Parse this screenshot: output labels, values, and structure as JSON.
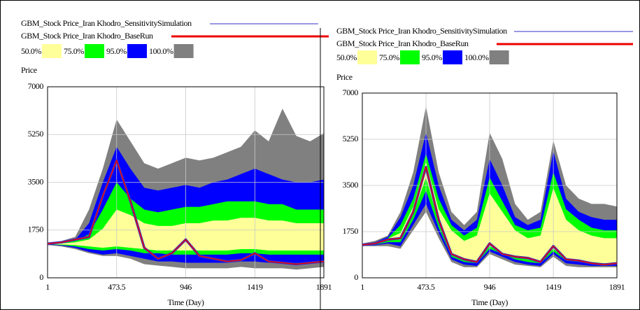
{
  "chart_data": [
    {
      "type": "sensitivity",
      "y_label": "Price",
      "x_label": "Time (Day)",
      "xlim": [
        1,
        1891
      ],
      "xticks": [
        1,
        473.5,
        946,
        1419,
        1891
      ],
      "ylim": [
        0,
        7000
      ],
      "yticks": [
        0,
        1750,
        3500,
        5250,
        7000
      ],
      "grid": true,
      "x": [
        1,
        95.5,
        190,
        284.5,
        379,
        473.5,
        568,
        662.5,
        757,
        851.5,
        946,
        1040.5,
        1135,
        1229.5,
        1324,
        1419,
        1513.5,
        1608,
        1702.5,
        1797,
        1891
      ],
      "series": [
        {
          "name": "GBM_Stock Price_Iran Khodro_SensitivitySimulation",
          "color": "#3333cc",
          "values": [
            1250,
            1300,
            1400,
            1500,
            3000,
            4300,
            2800,
            1100,
            700,
            900,
            1400,
            800,
            700,
            600,
            650,
            900,
            600,
            550,
            500,
            550,
            600
          ]
        },
        {
          "name": "GBM_Stock Price_Iran Khodro_BaseRun",
          "color": "#ee0000",
          "values": [
            1250,
            1300,
            1400,
            1500,
            3000,
            4300,
            2800,
            1100,
            700,
            900,
            1400,
            800,
            700,
            600,
            650,
            900,
            600,
            550,
            500,
            550,
            600
          ]
        }
      ],
      "bands": [
        {
          "name": "50.0%",
          "color": "#ffff99",
          "upper": [
            1235,
            1260,
            1300,
            1400,
            1800,
            2500,
            2300,
            2000,
            1900,
            1900,
            2000,
            2000,
            2100,
            2100,
            2200,
            2200,
            2100,
            2100,
            2000,
            2000,
            2000
          ],
          "lower": [
            1232,
            1220,
            1200,
            1150,
            1100,
            1150,
            1100,
            1050,
            1000,
            1000,
            1000,
            1000,
            1000,
            1000,
            1050,
            1050,
            1000,
            1000,
            1000,
            1000,
            1000
          ]
        },
        {
          "name": "75.0%",
          "color": "#00ff00",
          "upper": [
            1240,
            1280,
            1350,
            1600,
            2500,
            3500,
            2900,
            2500,
            2400,
            2500,
            2600,
            2600,
            2700,
            2800,
            2800,
            2800,
            2700,
            2700,
            2500,
            2500,
            2500
          ],
          "lower": [
            1230,
            1200,
            1150,
            1050,
            1000,
            1050,
            1000,
            900,
            900,
            850,
            850,
            850,
            850,
            850,
            900,
            900,
            850,
            850,
            850,
            850,
            850
          ]
        },
        {
          "name": "95.0%",
          "color": "#0000ff",
          "upper": [
            1250,
            1300,
            1400,
            2000,
            3500,
            4800,
            4000,
            3300,
            3200,
            3300,
            3400,
            3300,
            3500,
            3600,
            3800,
            4000,
            3800,
            3600,
            3500,
            3500,
            3600
          ],
          "lower": [
            1220,
            1180,
            1100,
            950,
            850,
            900,
            800,
            700,
            600,
            600,
            550,
            550,
            550,
            550,
            600,
            600,
            550,
            550,
            550,
            550,
            600
          ]
        },
        {
          "name": "100.0%",
          "color": "#808080",
          "upper": [
            1250,
            1350,
            1500,
            2500,
            4000,
            5800,
            5000,
            4200,
            4000,
            4200,
            4400,
            4300,
            4400,
            4600,
            4800,
            5400,
            5000,
            6200,
            5200,
            5000,
            5300
          ],
          "lower": [
            1200,
            1150,
            1050,
            900,
            800,
            800,
            700,
            500,
            450,
            400,
            350,
            350,
            350,
            350,
            400,
            350,
            350,
            350,
            300,
            350,
            400
          ]
        }
      ]
    },
    {
      "type": "sensitivity",
      "y_label": "Price",
      "x_label": "Time (Day)",
      "xlim": [
        1,
        1891
      ],
      "xticks": [
        1,
        473.5,
        946,
        1419,
        1891
      ],
      "ylim": [
        0,
        7000
      ],
      "yticks": [
        0,
        1750,
        3500,
        5250,
        7000
      ],
      "grid": true,
      "x": [
        1,
        95.5,
        190,
        284.5,
        379,
        473.5,
        568,
        662.5,
        757,
        851.5,
        946,
        1040.5,
        1135,
        1229.5,
        1324,
        1419,
        1513.5,
        1608,
        1702.5,
        1797,
        1891
      ],
      "series": [
        {
          "name": "GBM_Stock Price_Iran Khodro_SensitivitySimulation",
          "color": "#3333cc",
          "values": [
            1250,
            1300,
            1450,
            1500,
            2500,
            4200,
            2200,
            900,
            700,
            600,
            1300,
            900,
            800,
            750,
            600,
            1200,
            700,
            650,
            550,
            500,
            550
          ]
        },
        {
          "name": "GBM_Stock Price_Iran Khodro_BaseRun",
          "color": "#ee0000",
          "values": [
            1250,
            1300,
            1450,
            1500,
            2500,
            4200,
            2200,
            900,
            700,
            600,
            1300,
            900,
            800,
            750,
            600,
            1200,
            700,
            650,
            550,
            500,
            550
          ]
        }
      ],
      "bands": [
        {
          "name": "50.0%",
          "color": "#ffff99",
          "upper": [
            1250,
            1300,
            1480,
            1700,
            2700,
            4400,
            2600,
            1800,
            1400,
            1600,
            3200,
            2500,
            1800,
            1500,
            1600,
            3400,
            2200,
            1800,
            1600,
            1500,
            1500
          ],
          "lower": [
            1240,
            1280,
            1420,
            1450,
            2400,
            3800,
            2100,
            900,
            700,
            600,
            1200,
            950,
            800,
            700,
            600,
            1100,
            700,
            650,
            600,
            550,
            550
          ]
        },
        {
          "name": "75.0%",
          "color": "#00ff00",
          "upper": [
            1260,
            1320,
            1500,
            2000,
            3000,
            4700,
            3000,
            2000,
            1600,
            1900,
            3800,
            2900,
            2000,
            1800,
            1900,
            4000,
            2600,
            2200,
            1900,
            1800,
            1800
          ],
          "lower": [
            1230,
            1250,
            1350,
            1350,
            2200,
            3300,
            1900,
            800,
            600,
            550,
            1100,
            900,
            700,
            600,
            550,
            1000,
            650,
            600,
            550,
            550,
            550
          ]
        },
        {
          "name": "95.0%",
          "color": "#0000ff",
          "upper": [
            1280,
            1350,
            1550,
            2300,
            3500,
            5500,
            3500,
            2200,
            1800,
            2200,
            4500,
            3500,
            2300,
            2000,
            2200,
            4800,
            3000,
            2500,
            2300,
            2200,
            2200
          ],
          "lower": [
            1220,
            1230,
            1300,
            1200,
            2000,
            2800,
            1700,
            700,
            500,
            450,
            1000,
            800,
            600,
            500,
            450,
            900,
            550,
            500,
            450,
            450,
            450
          ]
        },
        {
          "name": "100.0%",
          "color": "#808080",
          "upper": [
            1300,
            1400,
            1600,
            2500,
            4000,
            6500,
            4000,
            2500,
            2000,
            2500,
            5500,
            4500,
            2800,
            2200,
            2500,
            5200,
            3500,
            3000,
            2800,
            2800,
            2700
          ],
          "lower": [
            1200,
            1200,
            1200,
            1100,
            1800,
            2500,
            1500,
            600,
            400,
            400,
            900,
            700,
            500,
            450,
            400,
            800,
            450,
            400,
            400,
            400,
            400
          ]
        }
      ]
    }
  ]
}
